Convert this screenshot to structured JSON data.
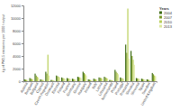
{
  "chart_data": {
    "type": "bar",
    "y_label": "kg of PM2.5 emissions per 1000 t output",
    "legend_title": "Years",
    "legend": "top-right",
    "categories": [
      "Austria",
      "Belgium",
      "Bulgaria",
      "Cyprus",
      "Czech Republic",
      "Denmark",
      "Estonia",
      "Finland",
      "France",
      "Germany",
      "Greece",
      "Hungary",
      "Ireland",
      "Italy",
      "Latvia",
      "Lithuania",
      "Netherlands",
      "Poland",
      "Portugal",
      "Romania",
      "Slovakia",
      "Slovenia",
      "Spain",
      "Sweden",
      "United Kingdom"
    ],
    "series": [
      {
        "name": "2004",
        "color": "#3d6b14",
        "values": [
          300,
          500,
          1200,
          300,
          1500,
          200,
          900,
          600,
          500,
          400,
          700,
          1500,
          300,
          400,
          600,
          700,
          200,
          1800,
          600,
          5800,
          4800,
          500,
          400,
          300,
          1300
        ]
      },
      {
        "name": "2007",
        "color": "#7a9a2a",
        "values": [
          250,
          400,
          900,
          250,
          1200,
          180,
          800,
          500,
          450,
          350,
          650,
          1300,
          250,
          350,
          550,
          600,
          180,
          1500,
          500,
          4500,
          4000,
          450,
          350,
          250,
          1100
        ]
      },
      {
        "name": "2010",
        "color": "#b9cf5a",
        "values": [
          220,
          350,
          700,
          200,
          4200,
          150,
          700,
          450,
          400,
          300,
          600,
          1100,
          200,
          300,
          500,
          500,
          150,
          1300,
          450,
          11500,
          3400,
          400,
          300,
          200,
          900
        ]
      },
      {
        "name": "2013",
        "color": "#dde89c",
        "values": [
          200,
          300,
          600,
          200,
          900,
          130,
          600,
          400,
          350,
          250,
          500,
          900,
          180,
          250,
          450,
          450,
          130,
          1100,
          400,
          3600,
          2600,
          350,
          250,
          180,
          800
        ]
      }
    ],
    "ylim": [
      0,
      12000
    ],
    "yticks": [
      0,
      2000,
      4000,
      6000,
      8000,
      10000,
      12000
    ],
    "grid": false
  }
}
